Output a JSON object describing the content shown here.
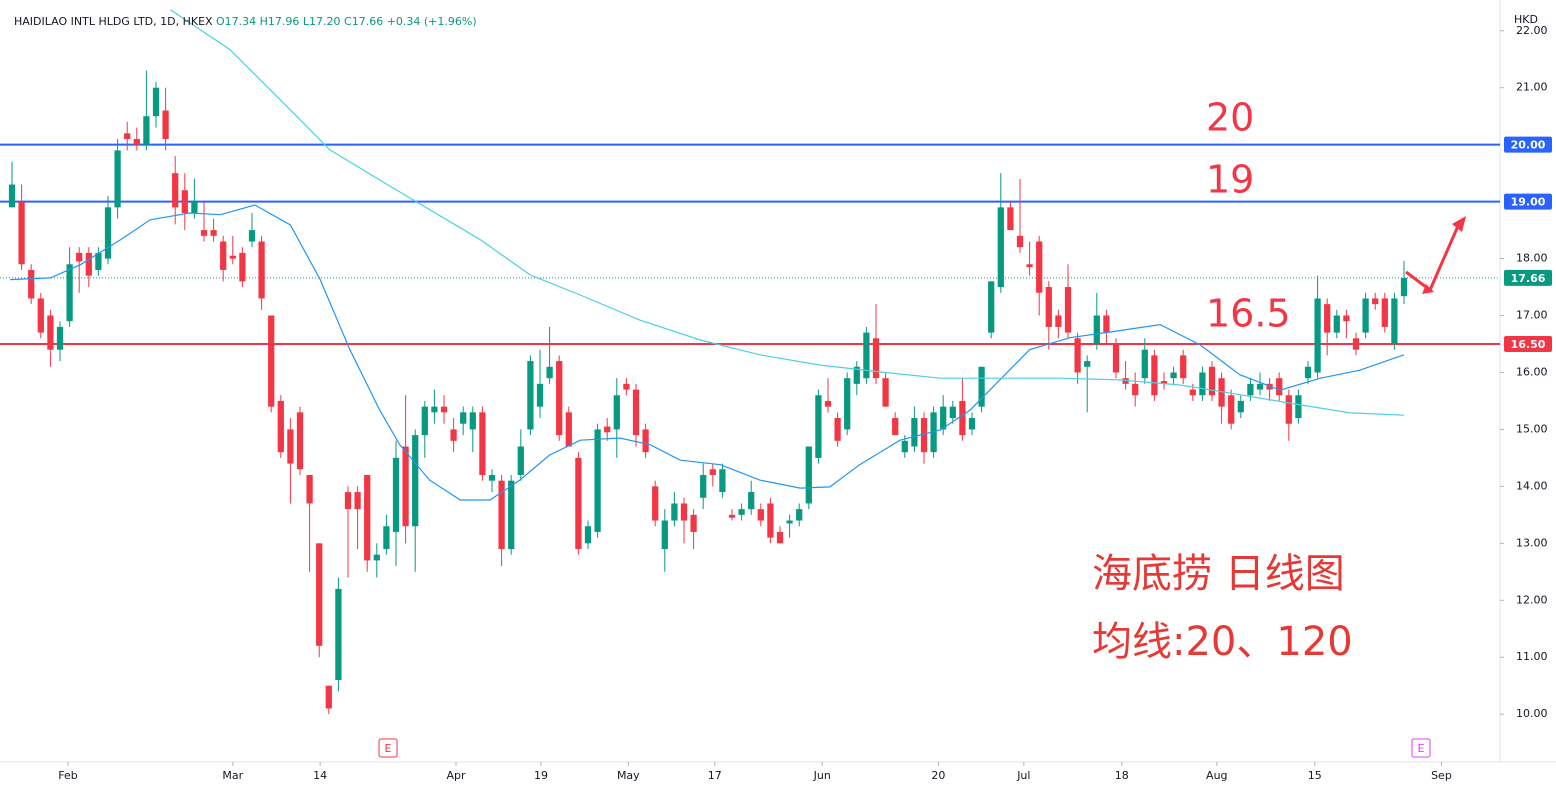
{
  "chart_data": {
    "type": "candlestick",
    "header": {
      "symbol": "HAIDILAO INTL HLDG LTD, 1D, HKEX",
      "ohlc": "O17.34 H17.96 L17.20 C17.66 +0.34 (+1.96%)"
    },
    "currency": "HKD",
    "up_color": "#089981",
    "down_color": "#f23645",
    "xlim": [
      -1.25,
      155
    ],
    "xticks": [
      {
        "value": 5.83,
        "label": "Feb"
      },
      {
        "value": 23.0,
        "label": "Mar"
      },
      {
        "value": 32.1,
        "label": "14"
      },
      {
        "value": 46.25,
        "label": "Apr"
      },
      {
        "value": 55.1,
        "label": "19"
      },
      {
        "value": 64.2,
        "label": "May"
      },
      {
        "value": 73.2,
        "label": "17"
      },
      {
        "value": 84.4,
        "label": "Jun"
      },
      {
        "value": 96.5,
        "label": "20"
      },
      {
        "value": 105.4,
        "label": "Jul"
      },
      {
        "value": 115.6,
        "label": "18"
      },
      {
        "value": 125.5,
        "label": "Aug"
      },
      {
        "value": 135.7,
        "label": "15"
      },
      {
        "value": 148.9,
        "label": "Sep"
      }
    ],
    "ylim": [
      9.16,
      22.4
    ],
    "yticks": [
      {
        "value": 10,
        "label": "10.00"
      },
      {
        "value": 11,
        "label": "11.00"
      },
      {
        "value": 12,
        "label": "12.00"
      },
      {
        "value": 13,
        "label": "13.00"
      },
      {
        "value": 14,
        "label": "14.00"
      },
      {
        "value": 15,
        "label": "15.00"
      },
      {
        "value": 16,
        "label": "16.00"
      },
      {
        "value": 17,
        "label": "17.00"
      },
      {
        "value": 18,
        "label": "18.00"
      },
      {
        "value": 21,
        "label": "21.00"
      },
      {
        "value": 22,
        "label": "22.00"
      }
    ],
    "grid": false,
    "candles": [
      [
        18.9,
        19.7,
        18.9,
        19.3
      ],
      [
        19.0,
        19.3,
        17.8,
        17.9
      ],
      [
        17.8,
        17.9,
        17.2,
        17.3
      ],
      [
        17.3,
        17.4,
        16.6,
        16.7
      ],
      [
        17.0,
        17.1,
        16.1,
        16.4
      ],
      [
        16.4,
        16.9,
        16.2,
        16.8
      ],
      [
        16.9,
        18.2,
        16.8,
        17.9
      ],
      [
        18.1,
        18.2,
        17.4,
        17.95
      ],
      [
        18.1,
        18.2,
        17.5,
        17.7
      ],
      [
        17.8,
        18.2,
        17.7,
        18.1
      ],
      [
        18.0,
        19.1,
        17.9,
        18.9
      ],
      [
        18.9,
        20.1,
        18.7,
        19.9
      ],
      [
        20.2,
        20.4,
        19.9,
        20.1
      ],
      [
        20.1,
        20.3,
        19.9,
        20.0
      ],
      [
        20.0,
        21.3,
        19.9,
        20.5
      ],
      [
        20.5,
        21.1,
        20.3,
        21.0
      ],
      [
        20.6,
        21.0,
        19.9,
        20.1
      ],
      [
        19.5,
        19.8,
        18.6,
        18.9
      ],
      [
        19.2,
        19.5,
        18.5,
        18.8
      ],
      [
        18.8,
        19.4,
        18.7,
        19.0
      ],
      [
        18.5,
        19.0,
        18.3,
        18.4
      ],
      [
        18.5,
        18.7,
        18.3,
        18.4
      ],
      [
        18.3,
        18.4,
        17.6,
        17.8
      ],
      [
        18.05,
        18.4,
        17.9,
        18.0
      ],
      [
        18.1,
        18.2,
        17.5,
        17.6
      ],
      [
        18.3,
        18.8,
        18.2,
        18.5
      ],
      [
        18.3,
        18.4,
        17.1,
        17.3
      ],
      [
        17.0,
        17.0,
        15.3,
        15.4
      ],
      [
        15.5,
        15.6,
        14.5,
        14.6
      ],
      [
        15.0,
        15.2,
        13.7,
        14.4
      ],
      [
        15.3,
        15.4,
        14.2,
        14.3
      ],
      [
        14.2,
        14.2,
        12.5,
        13.7
      ],
      [
        13.0,
        13.0,
        11.0,
        11.2
      ],
      [
        10.5,
        10.5,
        10.0,
        10.1
      ],
      [
        10.6,
        12.4,
        10.4,
        12.2
      ],
      [
        13.9,
        14.0,
        12.4,
        13.6
      ],
      [
        13.9,
        14.0,
        12.9,
        13.6
      ],
      [
        14.2,
        14.2,
        12.5,
        12.7
      ],
      [
        12.7,
        13.0,
        12.4,
        12.8
      ],
      [
        12.9,
        13.5,
        12.8,
        13.3
      ],
      [
        13.2,
        14.8,
        12.6,
        14.5
      ],
      [
        14.7,
        15.6,
        13.0,
        13.3
      ],
      [
        13.3,
        15.0,
        12.5,
        14.9
      ],
      [
        14.9,
        15.5,
        14.5,
        15.4
      ],
      [
        15.3,
        15.7,
        15.1,
        15.4
      ],
      [
        15.4,
        15.6,
        15.1,
        15.3
      ],
      [
        15.0,
        15.2,
        14.6,
        14.8
      ],
      [
        15.1,
        15.4,
        14.9,
        15.3
      ],
      [
        15.0,
        15.4,
        14.6,
        15.3
      ],
      [
        15.3,
        15.4,
        14.1,
        14.2
      ],
      [
        14.1,
        14.3,
        13.9,
        14.2
      ],
      [
        14.1,
        14.2,
        12.6,
        12.9
      ],
      [
        12.9,
        14.2,
        12.8,
        14.1
      ],
      [
        14.2,
        15.0,
        14.1,
        14.7
      ],
      [
        15.0,
        16.3,
        14.9,
        16.2
      ],
      [
        15.4,
        16.4,
        15.2,
        15.8
      ],
      [
        15.9,
        16.8,
        15.8,
        16.1
      ],
      [
        16.2,
        16.3,
        14.8,
        14.9
      ],
      [
        15.3,
        15.4,
        14.7,
        14.7
      ],
      [
        14.5,
        14.6,
        12.8,
        12.9
      ],
      [
        13.0,
        13.4,
        12.9,
        13.3
      ],
      [
        13.2,
        15.1,
        13.1,
        15.0
      ],
      [
        15.05,
        15.2,
        14.8,
        14.95
      ],
      [
        15.0,
        15.9,
        14.5,
        15.6
      ],
      [
        15.8,
        15.9,
        15.6,
        15.7
      ],
      [
        15.7,
        15.8,
        14.7,
        14.9
      ],
      [
        15.0,
        15.1,
        14.5,
        14.6
      ],
      [
        14.0,
        14.1,
        13.3,
        13.4
      ],
      [
        12.9,
        13.6,
        12.5,
        13.4
      ],
      [
        13.4,
        13.9,
        13.3,
        13.7
      ],
      [
        13.7,
        13.8,
        13.0,
        13.4
      ],
      [
        13.5,
        13.6,
        12.9,
        13.2
      ],
      [
        13.8,
        14.4,
        13.6,
        14.2
      ],
      [
        14.3,
        14.4,
        14.0,
        14.2
      ],
      [
        13.9,
        14.4,
        13.8,
        14.3
      ],
      [
        13.5,
        13.6,
        13.4,
        13.45
      ],
      [
        13.5,
        13.7,
        13.4,
        13.6
      ],
      [
        13.6,
        14.1,
        13.5,
        13.9
      ],
      [
        13.6,
        13.7,
        13.3,
        13.4
      ],
      [
        13.7,
        13.8,
        13.0,
        13.1
      ],
      [
        13.2,
        13.3,
        13.0,
        13.0
      ],
      [
        13.35,
        13.5,
        13.1,
        13.4
      ],
      [
        13.4,
        13.7,
        13.3,
        13.6
      ],
      [
        13.7,
        14.7,
        13.6,
        14.7
      ],
      [
        14.5,
        15.7,
        14.4,
        15.6
      ],
      [
        15.5,
        15.9,
        15.3,
        15.4
      ],
      [
        15.2,
        15.3,
        14.7,
        14.8
      ],
      [
        15.0,
        16.0,
        14.9,
        15.9
      ],
      [
        15.8,
        16.2,
        15.6,
        16.1
      ],
      [
        15.9,
        16.8,
        15.8,
        16.7
      ],
      [
        16.6,
        17.2,
        15.8,
        15.9
      ],
      [
        15.9,
        16.0,
        15.4,
        15.4
      ],
      [
        15.2,
        15.3,
        14.9,
        14.9
      ],
      [
        14.6,
        14.9,
        14.5,
        14.8
      ],
      [
        14.7,
        15.4,
        14.6,
        15.2
      ],
      [
        15.2,
        15.3,
        14.4,
        14.6
      ],
      [
        14.6,
        15.4,
        14.5,
        15.3
      ],
      [
        15.0,
        15.6,
        14.9,
        15.4
      ],
      [
        15.2,
        15.5,
        15.1,
        15.4
      ],
      [
        15.5,
        15.9,
        14.8,
        14.9
      ],
      [
        15.0,
        15.3,
        14.9,
        15.2
      ],
      [
        15.4,
        16.1,
        15.3,
        16.1
      ],
      [
        16.7,
        17.6,
        16.6,
        17.6
      ],
      [
        17.5,
        19.5,
        17.4,
        18.9
      ],
      [
        18.9,
        19.0,
        18.5,
        18.5
      ],
      [
        18.4,
        19.4,
        18.1,
        18.2
      ],
      [
        17.9,
        18.3,
        17.7,
        17.85
      ],
      [
        18.3,
        18.4,
        17.0,
        17.4
      ],
      [
        17.5,
        17.6,
        16.4,
        16.8
      ],
      [
        17.0,
        17.1,
        16.6,
        16.8
      ],
      [
        17.5,
        17.9,
        16.6,
        16.7
      ],
      [
        16.6,
        16.7,
        15.8,
        16.0
      ],
      [
        16.1,
        16.3,
        15.3,
        16.2
      ],
      [
        16.5,
        17.4,
        16.4,
        17.0
      ],
      [
        17.0,
        17.1,
        16.5,
        16.7
      ],
      [
        16.5,
        16.6,
        15.9,
        16.0
      ],
      [
        15.9,
        16.2,
        15.7,
        15.8
      ],
      [
        15.8,
        16.0,
        15.4,
        15.6
      ],
      [
        15.9,
        16.6,
        15.8,
        16.4
      ],
      [
        16.3,
        16.4,
        15.5,
        15.6
      ],
      [
        15.85,
        16.0,
        15.7,
        15.8
      ],
      [
        15.9,
        16.1,
        15.8,
        16.0
      ],
      [
        16.3,
        16.4,
        15.8,
        15.9
      ],
      [
        15.7,
        15.8,
        15.5,
        15.6
      ],
      [
        15.6,
        16.1,
        15.5,
        16.0
      ],
      [
        16.1,
        16.2,
        15.5,
        15.6
      ],
      [
        15.9,
        16.0,
        15.1,
        15.4
      ],
      [
        15.6,
        15.7,
        15.0,
        15.1
      ],
      [
        15.3,
        15.6,
        15.2,
        15.5
      ],
      [
        15.6,
        15.9,
        15.5,
        15.8
      ],
      [
        15.7,
        16.0,
        15.6,
        15.8
      ],
      [
        15.8,
        15.9,
        15.5,
        15.7
      ],
      [
        15.9,
        16.0,
        15.5,
        15.6
      ],
      [
        15.6,
        15.7,
        14.8,
        15.1
      ],
      [
        15.2,
        15.7,
        15.1,
        15.6
      ],
      [
        15.9,
        16.2,
        15.8,
        16.1
      ],
      [
        16.0,
        17.7,
        15.9,
        17.3
      ],
      [
        17.2,
        17.3,
        16.3,
        16.7
      ],
      [
        16.7,
        17.1,
        16.6,
        17.0
      ],
      [
        17.0,
        17.1,
        16.6,
        16.9
      ],
      [
        16.6,
        16.7,
        16.3,
        16.4
      ],
      [
        16.7,
        17.4,
        16.6,
        17.3
      ],
      [
        17.3,
        17.4,
        17.1,
        17.2
      ],
      [
        17.3,
        17.4,
        16.7,
        16.8
      ],
      [
        16.5,
        17.4,
        16.4,
        17.3
      ],
      [
        17.34,
        17.96,
        17.2,
        17.66
      ]
    ],
    "moving_averages": [
      {
        "color": "#2196f3",
        "x": [
          -0.2,
          4.0,
          7.1,
          11.3,
          14.4,
          18.5,
          21.7,
          25.3,
          29.0,
          32.1,
          35.2,
          38.3,
          40.4,
          43.5,
          46.7,
          49.8,
          52.9,
          56.0,
          59.2,
          63.3,
          66.5,
          69.6,
          73.8,
          77.9,
          82.1,
          85.2,
          88.3,
          92.5,
          96.7,
          99.8,
          102.9,
          106.0,
          110.2,
          114.4,
          119.6,
          123.8,
          127.9,
          132.1,
          136.3,
          140.4,
          145
        ],
        "values": [
          17.63,
          17.66,
          17.89,
          18.33,
          18.68,
          18.8,
          18.77,
          18.94,
          18.59,
          17.63,
          16.4,
          15.34,
          14.73,
          14.11,
          13.76,
          13.76,
          14.11,
          14.55,
          14.81,
          14.85,
          14.73,
          14.46,
          14.38,
          14.11,
          13.97,
          13.99,
          14.38,
          14.81,
          14.99,
          15.34,
          15.87,
          16.4,
          16.61,
          16.71,
          16.84,
          16.48,
          15.96,
          15.69,
          15.9,
          16.04,
          16.31
        ]
      },
      {
        "color": "#4dd0e1",
        "x": [
          16.5,
          22.7,
          29.0,
          33.1,
          38.3,
          43.5,
          48.8,
          54.0,
          59.2,
          65.4,
          71.7,
          77.9,
          84.2,
          90.4,
          96.7,
          102.9,
          109.2,
          115.4,
          121.7,
          127.9,
          134.2,
          139.4,
          145
        ],
        "values": [
          22.37,
          21.67,
          20.61,
          19.91,
          19.38,
          18.86,
          18.33,
          17.71,
          17.36,
          16.92,
          16.57,
          16.31,
          16.13,
          16.01,
          15.9,
          15.9,
          15.9,
          15.87,
          15.78,
          15.61,
          15.43,
          15.29,
          15.25
        ]
      }
    ],
    "hlines": [
      {
        "value": 20,
        "label": "20.00",
        "color": "#2962ff"
      },
      {
        "value": 19,
        "label": "19.00",
        "color": "#2962ff"
      },
      {
        "value": 16.5,
        "label": "16.50",
        "color": "#f23645"
      }
    ],
    "last_price": {
      "value": 17.66,
      "label": "17.66",
      "color": "#089981"
    },
    "events": [
      {
        "x": 39.17,
        "label": "E",
        "color": "#f23645"
      },
      {
        "x": 146.77,
        "label": "E",
        "color": "#e040fb"
      }
    ],
    "annotations": [
      "20",
      "19",
      "16.5",
      "海底捞 日线图",
      "均线:20、120"
    ]
  }
}
